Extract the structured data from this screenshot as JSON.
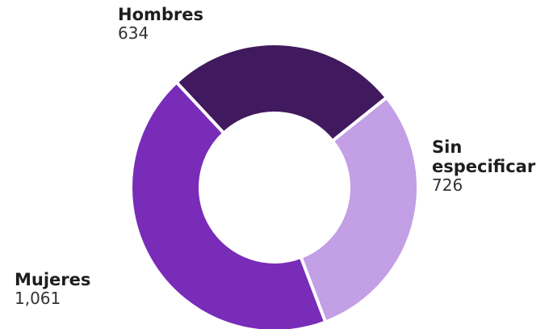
{
  "chart_data": {
    "type": "pie",
    "donut": true,
    "title": "",
    "categories": [
      "Hombres",
      "Sin especificar",
      "Mujeres"
    ],
    "values": [
      634,
      726,
      1061
    ],
    "value_labels": [
      "634",
      "726",
      "1,061"
    ],
    "label_lines": [
      [
        "Hombres"
      ],
      [
        "Sin",
        "especificar"
      ],
      [
        "Mujeres"
      ]
    ],
    "colors": [
      "#41195e",
      "#c39fe6",
      "#782cb8"
    ],
    "legend": "none"
  }
}
